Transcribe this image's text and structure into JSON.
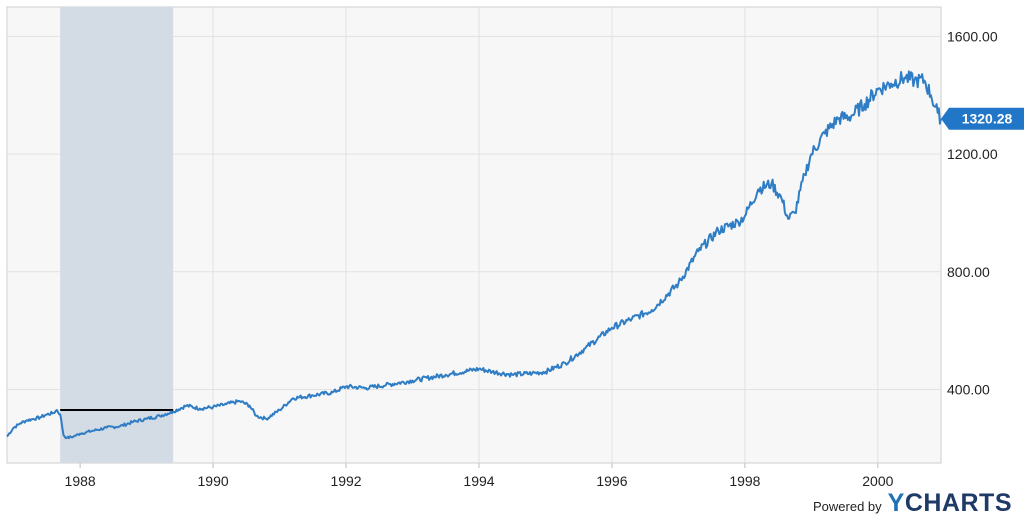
{
  "chart_data": {
    "type": "line",
    "title": "",
    "xlabel": "",
    "ylabel": "",
    "x_ticks": [
      "1988",
      "1990",
      "1992",
      "1994",
      "1996",
      "1998",
      "2000"
    ],
    "x_range": [
      1986.9,
      2000.95
    ],
    "y_ticks": [
      "400.00",
      "800.00",
      "1200.00",
      "1600.00"
    ],
    "y_range": [
      150,
      1700
    ],
    "grid": true,
    "line_color": "#2f7dc4",
    "shade_color": "#d3dbe4",
    "shaded_region": {
      "x_start": 1987.7,
      "x_end": 1989.4
    },
    "reference_line": {
      "x_start": 1987.7,
      "x_end": 1989.4,
      "y": 330,
      "color": "#000000"
    },
    "last_value": {
      "x": 2000.95,
      "y": 1320.28,
      "label": "1320.28",
      "color": "#2176c7"
    },
    "series": [
      {
        "x": [
          1986.9,
          1987.0,
          1987.1,
          1987.2,
          1987.3,
          1987.4,
          1987.5,
          1987.6,
          1987.65,
          1987.7,
          1987.72,
          1987.75,
          1987.8,
          1987.9,
          1988.0,
          1988.2,
          1988.4,
          1988.6,
          1988.8,
          1989.0,
          1989.2,
          1989.4,
          1989.6,
          1989.8,
          1990.0,
          1990.2,
          1990.4,
          1990.55,
          1990.65,
          1990.8,
          1991.0,
          1991.2,
          1991.5,
          1991.8,
          1992.0,
          1992.3,
          1992.6,
          1993.0,
          1993.5,
          1994.0,
          1994.2,
          1994.5,
          1994.8,
          1995.0,
          1995.3,
          1995.6,
          1996.0,
          1996.3,
          1996.6,
          1997.0,
          1997.3,
          1997.6,
          1997.9,
          1998.0,
          1998.2,
          1998.4,
          1998.55,
          1998.65,
          1998.75,
          1998.9,
          1999.0,
          1999.2,
          1999.4,
          1999.6,
          1999.8,
          2000.0,
          2000.2,
          2000.4,
          2000.55,
          2000.7,
          2000.8,
          2000.9,
          2000.95
        ],
        "y": [
          240,
          270,
          285,
          295,
          300,
          305,
          315,
          320,
          330,
          315,
          290,
          245,
          235,
          240,
          250,
          260,
          270,
          275,
          290,
          300,
          310,
          325,
          345,
          335,
          340,
          350,
          360,
          345,
          310,
          300,
          330,
          370,
          380,
          390,
          410,
          405,
          415,
          430,
          450,
          470,
          460,
          450,
          455,
          460,
          490,
          540,
          610,
          640,
          670,
          760,
          870,
          940,
          970,
          990,
          1080,
          1100,
          1050,
          980,
          1000,
          1130,
          1200,
          1270,
          1320,
          1330,
          1370,
          1420,
          1440,
          1460,
          1450,
          1450,
          1400,
          1340,
          1320
        ]
      }
    ]
  },
  "credit": {
    "prefix": "Powered by",
    "brand_first": "Y",
    "brand_rest": "CHARTS"
  }
}
